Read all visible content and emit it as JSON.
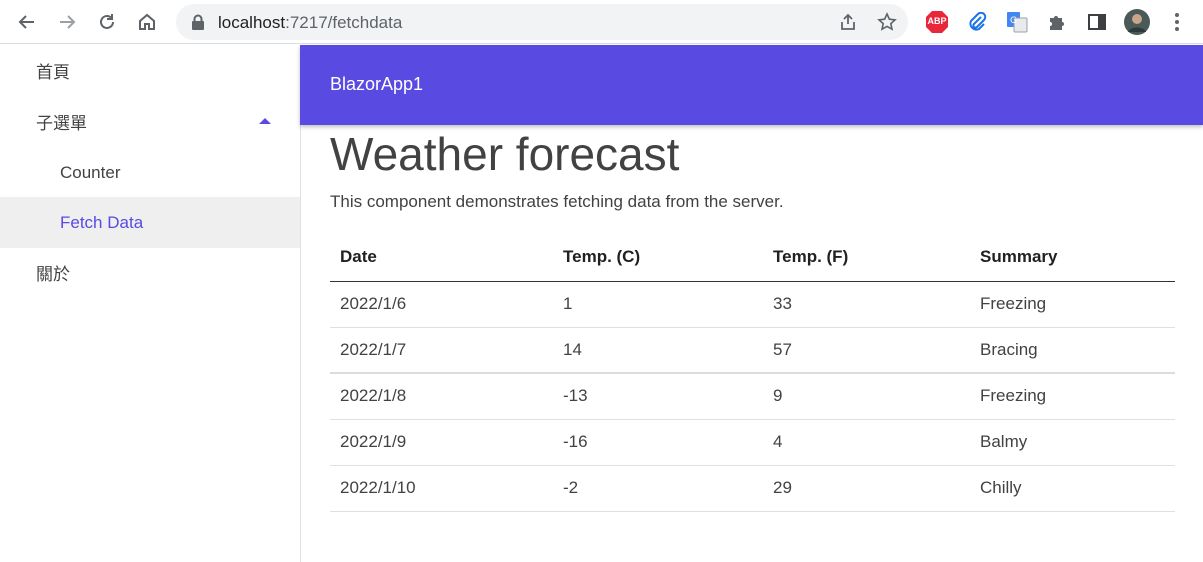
{
  "browser": {
    "url_host": "localhost",
    "url_path": ":7217/fetchdata",
    "icons": {
      "back": "back-arrow-icon",
      "forward": "forward-arrow-icon",
      "reload": "reload-icon",
      "home": "home-icon",
      "lock": "lock-icon",
      "share": "share-icon",
      "bookmark": "star-icon",
      "adblock": "abp-icon",
      "clip": "paperclip-icon",
      "translate": "translate-icon",
      "extensions": "puzzle-icon",
      "sidepanel": "side-panel-icon",
      "profile": "avatar",
      "menu": "kebab-menu-icon"
    },
    "adblock_label": "ABP"
  },
  "sidebar": {
    "items": [
      {
        "label": "首頁"
      },
      {
        "label": "子選單"
      },
      {
        "label": "Counter"
      },
      {
        "label": "Fetch Data"
      },
      {
        "label": "關於"
      }
    ]
  },
  "appbar": {
    "title": "BlazorApp1"
  },
  "main": {
    "title": "Weather forecast",
    "description": "This component demonstrates fetching data from the server.",
    "table": {
      "headers": [
        "Date",
        "Temp. (C)",
        "Temp. (F)",
        "Summary"
      ],
      "rows": [
        [
          "2022/1/6",
          "1",
          "33",
          "Freezing"
        ],
        [
          "2022/1/7",
          "14",
          "57",
          "Bracing"
        ],
        [
          "2022/1/8",
          "-13",
          "9",
          "Freezing"
        ],
        [
          "2022/1/9",
          "-16",
          "4",
          "Balmy"
        ],
        [
          "2022/1/10",
          "-2",
          "29",
          "Chilly"
        ]
      ]
    }
  },
  "colors": {
    "primary": "#594ae2",
    "active_bg": "#efefef",
    "text": "#424242"
  }
}
